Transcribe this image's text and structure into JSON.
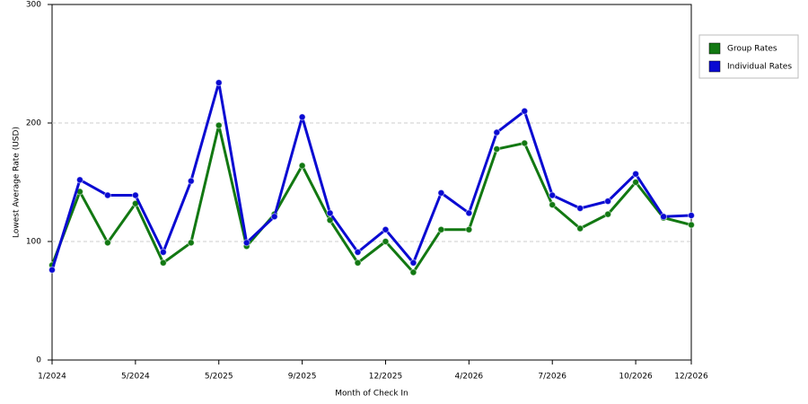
{
  "chart_data": {
    "type": "line",
    "x_label": "Month of Check In",
    "y_label": "Lowest Average Rate (USD)",
    "categories": [
      "1/2024",
      null,
      null,
      "5/2024",
      null,
      null,
      "5/2025",
      null,
      null,
      "9/2025",
      null,
      null,
      "12/2025",
      null,
      null,
      "4/2026",
      null,
      null,
      "7/2026",
      null,
      null,
      "10/2026",
      null,
      "12/2026"
    ],
    "series": [
      {
        "name": "Group Rates",
        "color": "#127812",
        "values": [
          80,
          142,
          99,
          132,
          82,
          99,
          198,
          96,
          123,
          164,
          118,
          82,
          100,
          74,
          110,
          110,
          178,
          183,
          131,
          111,
          123,
          150,
          120,
          114
        ]
      },
      {
        "name": "Individual Rates",
        "color": "#0a0ad2",
        "values": [
          76,
          152,
          139,
          139,
          91,
          151,
          234,
          99,
          121,
          205,
          124,
          91,
          110,
          82,
          141,
          124,
          192,
          210,
          139,
          128,
          134,
          157,
          121,
          122
        ]
      }
    ],
    "ylim": [
      0,
      300
    ],
    "yticks": [
      0,
      100,
      200,
      300
    ],
    "grid": true,
    "legend": "right"
  }
}
